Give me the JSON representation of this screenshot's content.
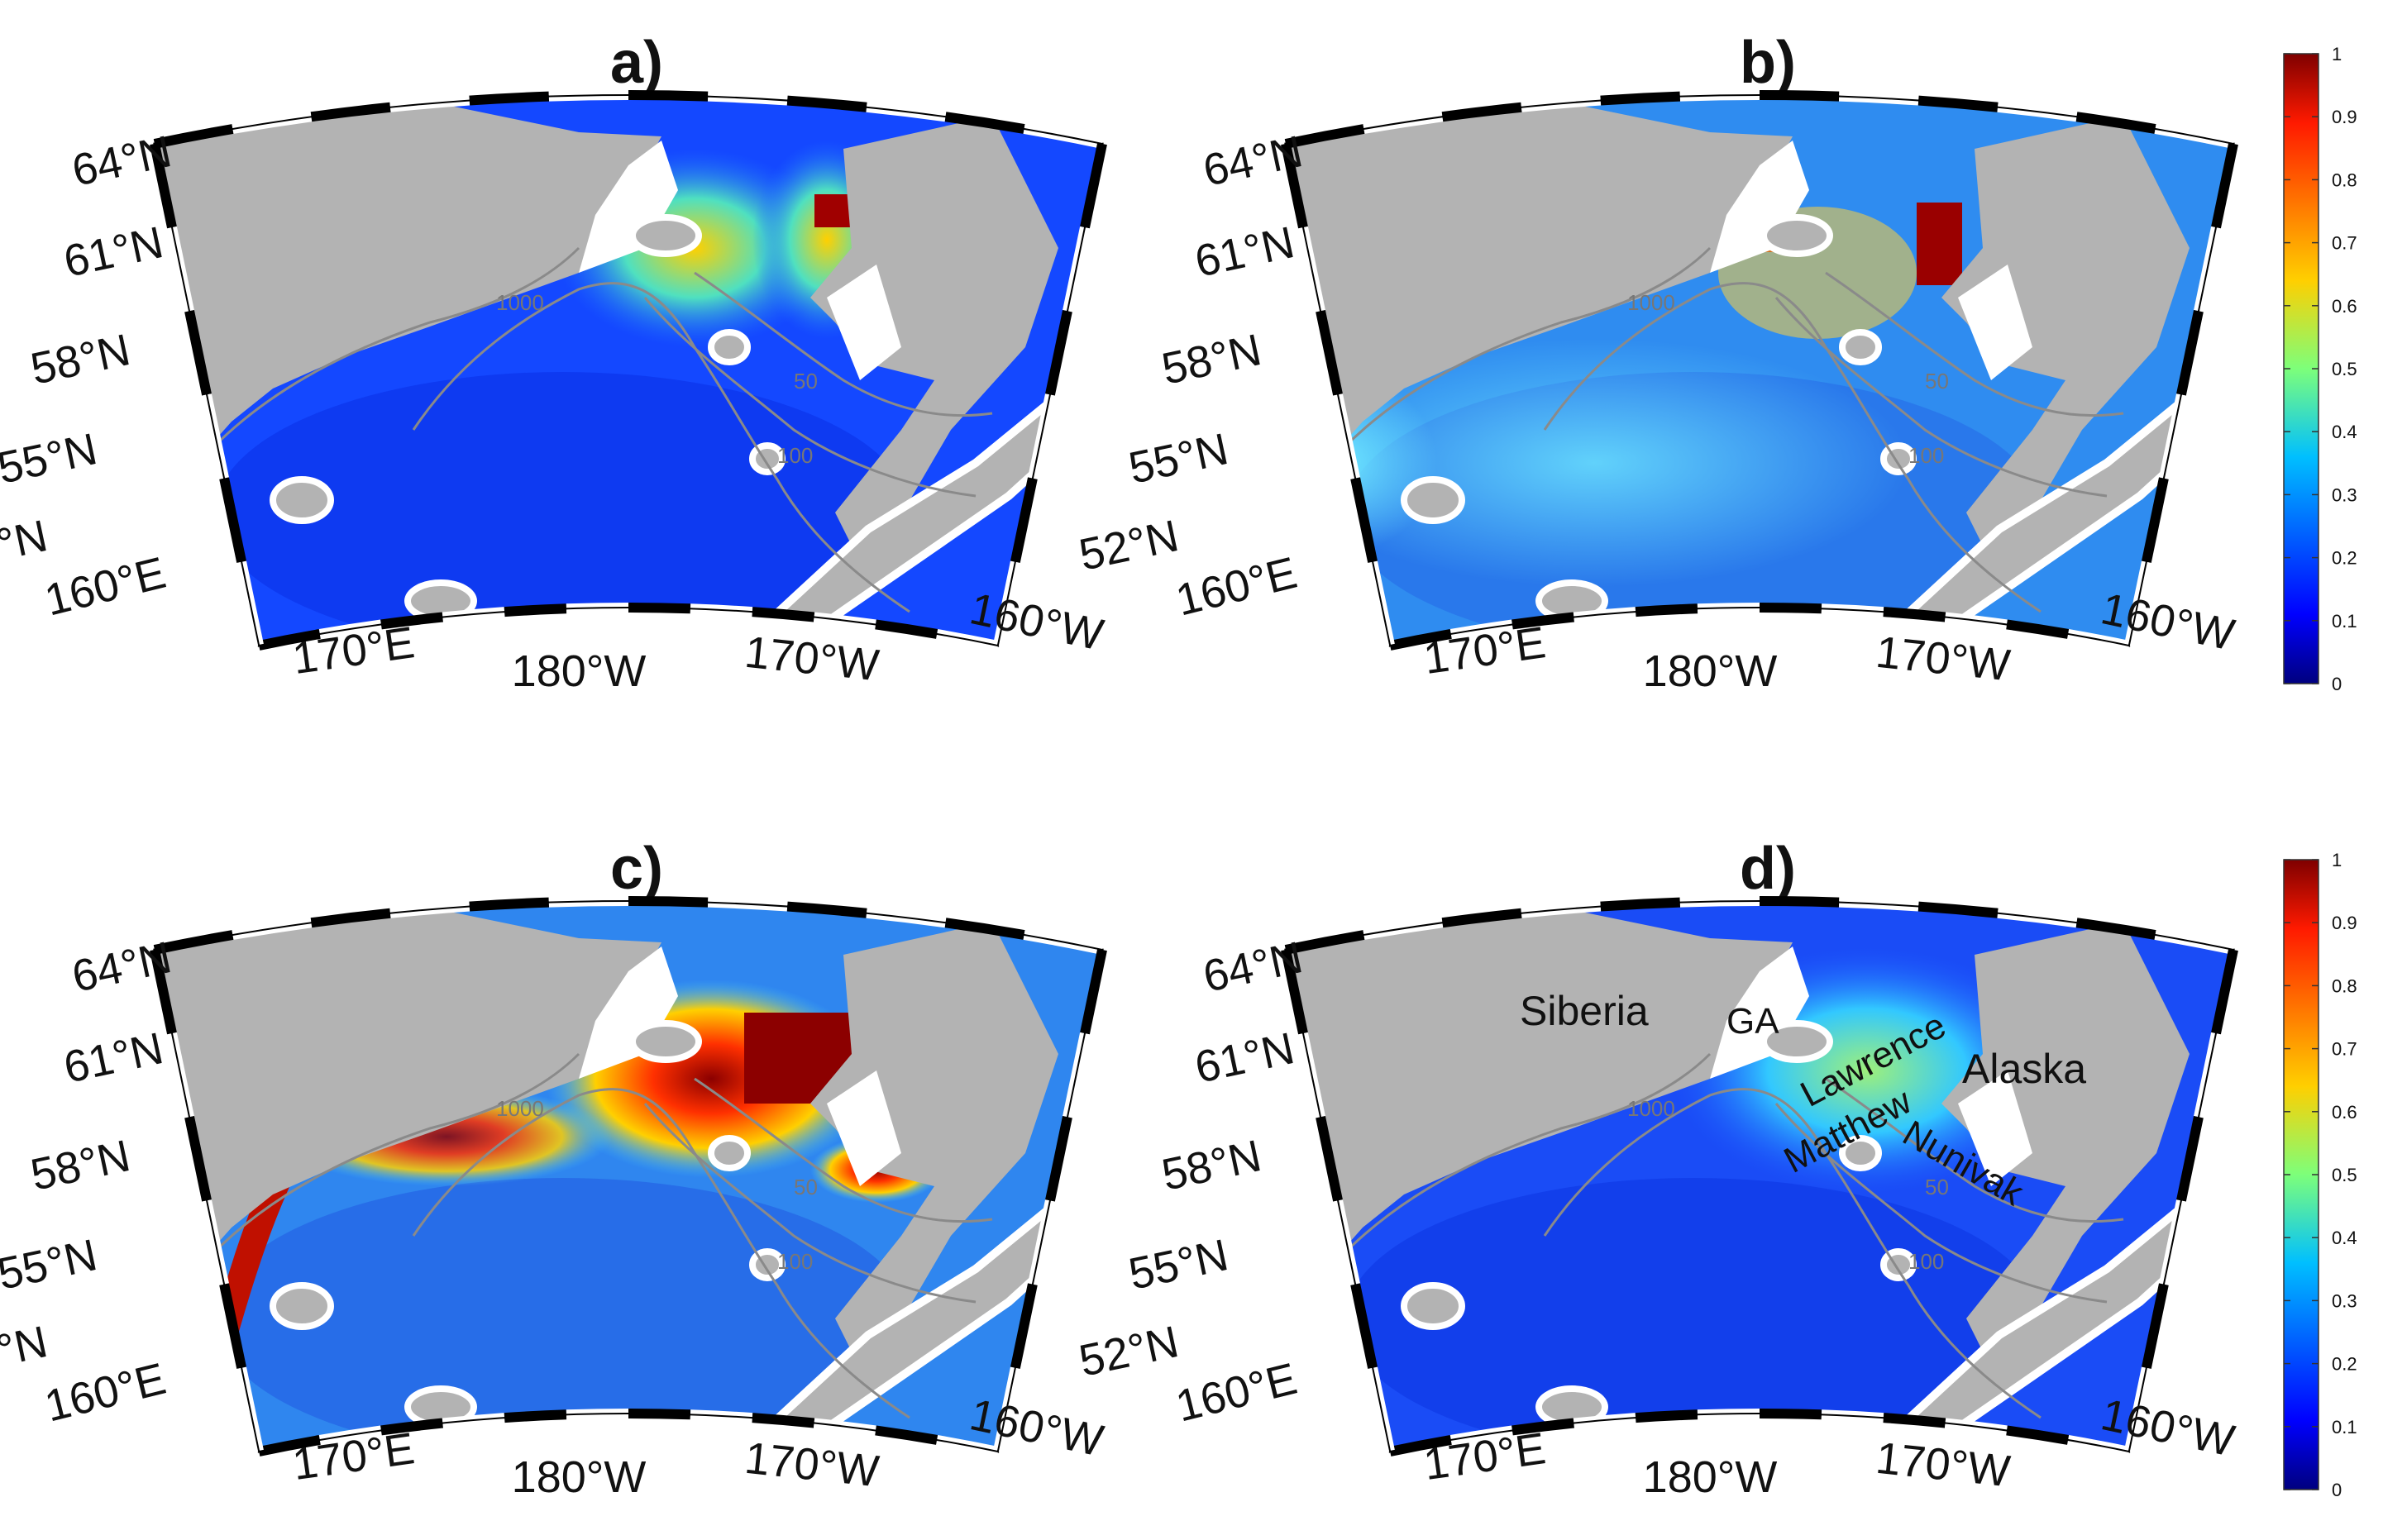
{
  "panels": [
    {
      "id": "a",
      "title": "a)"
    },
    {
      "id": "b",
      "title": "b)"
    },
    {
      "id": "c",
      "title": "c)"
    },
    {
      "id": "d",
      "title": "d)"
    }
  ],
  "latitude_labels": [
    "64°N",
    "61°N",
    "58°N",
    "55°N",
    "52°N"
  ],
  "longitude_labels": [
    "160°E",
    "170°E",
    "180°W",
    "170°W",
    "160°W"
  ],
  "contour_labels": [
    "50",
    "100",
    "1000"
  ],
  "place_labels": {
    "siberia": "Siberia",
    "ga": "GA",
    "lawrence": "Lawrence",
    "matthew": "Matthew",
    "nunivak": "Nunivak",
    "alaska": "Alaska"
  },
  "colorbar": {
    "ticks": [
      "1",
      "0.9",
      "0.8",
      "0.7",
      "0.6",
      "0.5",
      "0.4",
      "0.3",
      "0.2",
      "0.1",
      "0"
    ],
    "min": 0,
    "max": 1,
    "colormap": "jet"
  },
  "colors": {
    "land": "#b3b3b3",
    "ice_gap": "#ffffff",
    "contour": "#8a8a8a",
    "frame_dark": "#000000",
    "frame_light": "#ffffff"
  }
}
